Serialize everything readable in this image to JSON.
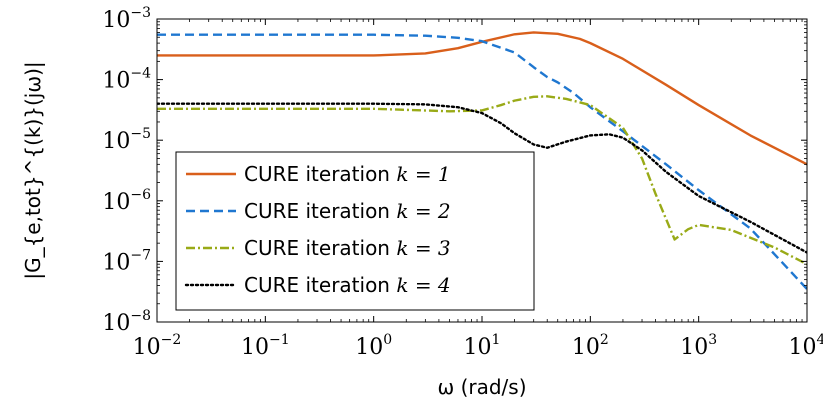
{
  "chart_data": {
    "type": "line",
    "xlabel": "ω (rad/s)",
    "ylabel": "|G_{e,tot}^{(k)}(jω)|",
    "xscale": "log",
    "yscale": "log",
    "xlim": [
      0.01,
      10000
    ],
    "ylim": [
      1e-08,
      0.001
    ],
    "xticks": [
      {
        "base": "10",
        "exp": "−2"
      },
      {
        "base": "10",
        "exp": "−1"
      },
      {
        "base": "10",
        "exp": "0"
      },
      {
        "base": "10",
        "exp": "1"
      },
      {
        "base": "10",
        "exp": "2"
      },
      {
        "base": "10",
        "exp": "3"
      },
      {
        "base": "10",
        "exp": "4"
      }
    ],
    "yticks": [
      {
        "base": "10",
        "exp": "−8"
      },
      {
        "base": "10",
        "exp": "−7"
      },
      {
        "base": "10",
        "exp": "−6"
      },
      {
        "base": "10",
        "exp": "−5"
      },
      {
        "base": "10",
        "exp": "−4"
      },
      {
        "base": "10",
        "exp": "−3"
      }
    ],
    "grid": false,
    "legend_position": "bottom-left",
    "series": [
      {
        "name": "CURE iteration k = 1",
        "legend_prefix": "CURE iteration ",
        "legend_math": "k = 1",
        "color": "#d95f1b",
        "dash": "solid",
        "x": [
          0.01,
          0.1,
          1,
          3,
          6,
          10,
          20,
          30,
          50,
          80,
          100,
          200,
          500,
          1000,
          3000,
          10000
        ],
        "y": [
          0.00025,
          0.00025,
          0.00025,
          0.00027,
          0.00033,
          0.00042,
          0.00056,
          0.0006,
          0.00057,
          0.00047,
          0.0004,
          0.00022,
          8.2e-05,
          3.8e-05,
          1.2e-05,
          4e-06
        ]
      },
      {
        "name": "CURE iteration k = 2",
        "legend_prefix": "CURE iteration ",
        "legend_math": "k = 2",
        "color": "#1f77d0",
        "dash": "dashed",
        "x": [
          0.01,
          0.1,
          1,
          3,
          6,
          10,
          20,
          30,
          40,
          50,
          70,
          100,
          200,
          500,
          1000,
          3000,
          10000
        ],
        "y": [
          0.00055,
          0.00055,
          0.00055,
          0.00053,
          0.00049,
          0.00043,
          0.00028,
          0.00016,
          0.00011,
          9e-05,
          6e-05,
          3.5e-05,
          1.4e-05,
          4e-06,
          1.5e-06,
          3.5e-07,
          3.5e-08
        ]
      },
      {
        "name": "CURE iteration k = 3",
        "legend_prefix": "CURE iteration ",
        "legend_math": "k = 3",
        "color": "#99aa17",
        "dash": "dashdot",
        "x": [
          0.01,
          0.1,
          1,
          5,
          10,
          15,
          20,
          30,
          40,
          60,
          100,
          200,
          300,
          400,
          600,
          800,
          1000,
          2000,
          5000,
          10000
        ],
        "y": [
          3.3e-05,
          3.3e-05,
          3.3e-05,
          3e-05,
          3.1e-05,
          3.8e-05,
          4.5e-05,
          5.2e-05,
          5.3e-05,
          4.8e-05,
          3.8e-05,
          1.6e-05,
          5e-06,
          1.3e-06,
          2.3e-07,
          3.4e-07,
          4e-07,
          3.3e-07,
          1.7e-07,
          9e-08
        ]
      },
      {
        "name": "CURE iteration k = 4",
        "legend_prefix": "CURE iteration ",
        "legend_math": "k = 4",
        "color": "#000000",
        "dash": "dotted",
        "x": [
          0.01,
          0.1,
          1,
          3,
          6,
          10,
          15,
          20,
          30,
          40,
          60,
          100,
          150,
          200,
          300,
          500,
          1000,
          3000,
          10000
        ],
        "y": [
          4e-05,
          4e-05,
          4e-05,
          3.9e-05,
          3.5e-05,
          2.8e-05,
          1.9e-05,
          1.3e-05,
          8.5e-06,
          7.5e-06,
          9.5e-06,
          1.2e-05,
          1.25e-05,
          1.1e-05,
          6.8e-06,
          3e-06,
          1.2e-06,
          4.5e-07,
          1.4e-07
        ]
      }
    ]
  }
}
